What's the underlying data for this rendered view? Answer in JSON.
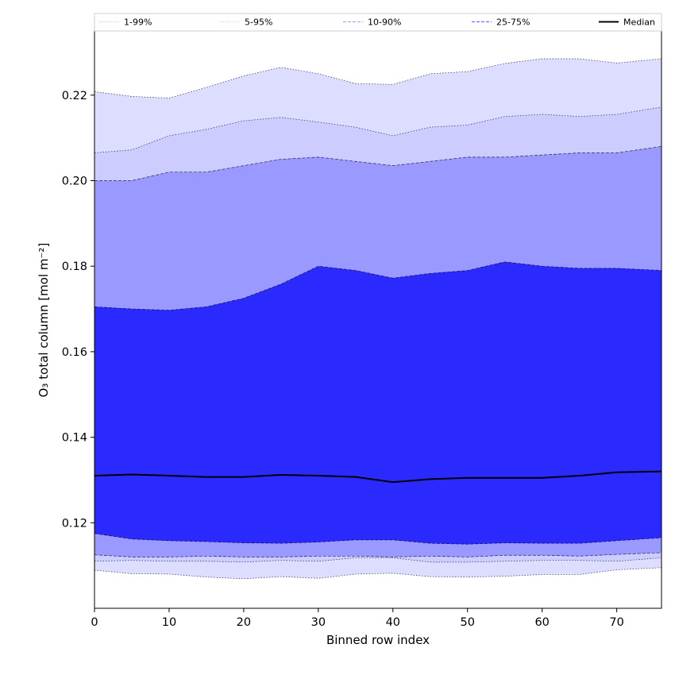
{
  "chart_data": {
    "type": "area",
    "xlabel": "Binned row index",
    "ylabel": "O₃ total column [mol m⁻²]",
    "xlim": [
      0,
      76
    ],
    "ylim": [
      0.1,
      0.235
    ],
    "x_ticks": [
      0,
      10,
      20,
      30,
      40,
      50,
      60,
      70
    ],
    "y_ticks": [
      0.12,
      0.14,
      0.16,
      0.18,
      0.2,
      0.22
    ],
    "x_tick_labels": [
      "0",
      "10",
      "20",
      "30",
      "40",
      "50",
      "60",
      "70"
    ],
    "y_tick_labels": [
      "0.12",
      "0.14",
      "0.16",
      "0.18",
      "0.20",
      "0.22"
    ],
    "grid": false,
    "legend_position": "top",
    "x": [
      0,
      5,
      10,
      15,
      20,
      25,
      30,
      35,
      40,
      45,
      50,
      55,
      60,
      65,
      70,
      76
    ],
    "bands": [
      {
        "name": "1-99%",
        "color": "#ddddff",
        "line_style": "dotted",
        "lower": [
          0.1089,
          0.1081,
          0.108,
          0.1073,
          0.1069,
          0.1074,
          0.107,
          0.108,
          0.1082,
          0.1074,
          0.1073,
          0.1075,
          0.1079,
          0.1079,
          0.109,
          0.1095
        ],
        "upper": [
          0.2208,
          0.2197,
          0.2193,
          0.2218,
          0.2245,
          0.2265,
          0.225,
          0.2227,
          0.2225,
          0.225,
          0.2255,
          0.2274,
          0.2285,
          0.2285,
          0.2275,
          0.2285
        ]
      },
      {
        "name": "5-95%",
        "color": "#ccccff",
        "line_style": "dotted",
        "lower": [
          0.111,
          0.1112,
          0.111,
          0.111,
          0.1108,
          0.1112,
          0.111,
          0.1118,
          0.1118,
          0.1108,
          0.1108,
          0.111,
          0.1112,
          0.1112,
          0.111,
          0.1118
        ],
        "upper": [
          0.2065,
          0.2072,
          0.2105,
          0.212,
          0.214,
          0.2148,
          0.2137,
          0.2125,
          0.2105,
          0.2125,
          0.213,
          0.215,
          0.2155,
          0.215,
          0.2155,
          0.2172
        ]
      },
      {
        "name": "10-90%",
        "color": "#9999ff",
        "line_style": "dashed",
        "lower": [
          0.1125,
          0.112,
          0.112,
          0.1122,
          0.112,
          0.112,
          0.1122,
          0.1122,
          0.112,
          0.1122,
          0.112,
          0.1124,
          0.1124,
          0.1122,
          0.1126,
          0.113
        ],
        "upper": [
          0.2,
          0.2,
          0.202,
          0.202,
          0.2035,
          0.205,
          0.2055,
          0.2045,
          0.2035,
          0.2045,
          0.2055,
          0.2055,
          0.206,
          0.2065,
          0.2065,
          0.208
        ]
      },
      {
        "name": "25-75%",
        "color": "#5555ff",
        "line_style": "dashed",
        "lower": [
          0.1175,
          0.1162,
          0.1158,
          0.1156,
          0.1153,
          0.1152,
          0.1155,
          0.116,
          0.116,
          0.1152,
          0.115,
          0.1153,
          0.1152,
          0.1152,
          0.1158,
          0.1165
        ],
        "upper": [
          0.1705,
          0.17,
          0.1697,
          0.1705,
          0.1725,
          0.1758,
          0.18,
          0.179,
          0.1772,
          0.1783,
          0.179,
          0.181,
          0.18,
          0.1795,
          0.1795,
          0.179
        ]
      }
    ],
    "inner_fill_color": "#2a2aff",
    "series": [
      {
        "name": "Median",
        "color": "#000000",
        "values": [
          0.131,
          0.1313,
          0.131,
          0.1307,
          0.1307,
          0.1312,
          0.131,
          0.1307,
          0.1295,
          0.1302,
          0.1305,
          0.1305,
          0.1305,
          0.131,
          0.1318,
          0.132
        ]
      }
    ]
  }
}
